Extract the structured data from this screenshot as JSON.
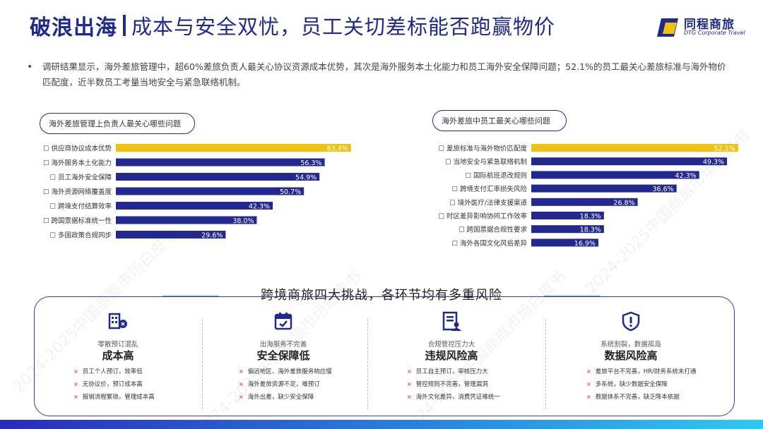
{
  "header": {
    "title_main": "破浪出海",
    "title_sub": "成本与安全双忧，员工关切差标能否跑赢物价",
    "logo_name": "同程商旅",
    "logo_en": "DTG Corporate Travel"
  },
  "intro": {
    "bullet": "•",
    "text": "调研结果显示，海外差旅管理中，超60%差旅负责人最关心协议资源成本优势，其次是海外服务本土化能力和员工海外安全保障问题；52.1%的员工最关心差旅标准与海外物价匹配度，近半数员工考量当地安全与紧急联络机制。"
  },
  "watermark": "2024-2025中国商旅市场白皮书",
  "chart_data": [
    {
      "type": "bar",
      "orientation": "horizontal",
      "title": "海外差旅管理上负责人最关心哪些问题",
      "categories": [
        "供应商协议成本优势",
        "海外服务本土化能力",
        "员工海外安全保障",
        "海外资源网络覆盖度",
        "跨境支付结算效率",
        "跨国票据标准统一性",
        "多国政策合规同步"
      ],
      "values": [
        63.4,
        56.3,
        54.9,
        50.7,
        42.3,
        38.0,
        29.6
      ],
      "value_labels": [
        "63.4%",
        "56.3%",
        "54.9%",
        "50.7%",
        "42.3%",
        "38.0%",
        "29.6%"
      ],
      "category_prefix": "☐",
      "highlight_index": 0,
      "colors": {
        "highlight": "#f2c012",
        "default": "#23288e",
        "label": "#ffffff"
      },
      "xlim": [
        0,
        70
      ]
    },
    {
      "type": "bar",
      "orientation": "horizontal",
      "title": "海外差旅中员工最关心哪些问题",
      "categories": [
        "差旅标准与海外物价匹配度",
        "当地安全与紧急联络机制",
        "国际航班退改规则",
        "跨境支付汇率损失风险",
        "境外医疗/法律支援渠道",
        "时区差异影响协同工作效率",
        "跨国票据合规性要求",
        "海外各国文化风俗差异"
      ],
      "values": [
        52.1,
        49.3,
        42.3,
        36.6,
        26.8,
        18.3,
        18.3,
        16.9
      ],
      "value_labels": [
        "52.1%",
        "49.3%",
        "42.3%",
        "36.6%",
        "26.8%",
        "18.3%",
        "18.3%",
        "16.9%"
      ],
      "category_prefix": "☐",
      "highlight_index": 0,
      "colors": {
        "highlight": "#f2c012",
        "default": "#23288e",
        "label": "#ffffff"
      },
      "xlim": [
        0,
        58
      ]
    }
  ],
  "section": {
    "title": "跨境商旅四大挑战，各环节均有多重风险",
    "columns": [
      {
        "icon": "building-grid-icon",
        "small": "零散预订混乱",
        "big": "成本高",
        "items": [
          "员工个人预订，效率低",
          "无协议价，预订成本高",
          "报销流程繁琐，管理成本高"
        ]
      },
      {
        "icon": "calendar-icon",
        "small": "出海服务不完善",
        "big": "安全保障低",
        "items": [
          "偏远地区、海外差旅服务响应慢",
          "海外差旅资源不足，难预订",
          "海外出差，缺少安全保障"
        ]
      },
      {
        "icon": "document-user-icon",
        "small": "合规管控压力大",
        "big": "违规风险高",
        "items": [
          "员工自主预订，审核压力大",
          "管控规则不完善，管理漏洞",
          "海外文化差异，消费凭证难统一"
        ]
      },
      {
        "icon": "shield-alert-icon",
        "small": "系统割裂，数据孤岛",
        "big": "数据风险高",
        "items": [
          "差旅平台不完善，HR/财务系统未打通",
          "多系统，缺少数据安全保障",
          "数据体系不完善，缺乏降本依据"
        ]
      }
    ],
    "item_mark": "×"
  }
}
